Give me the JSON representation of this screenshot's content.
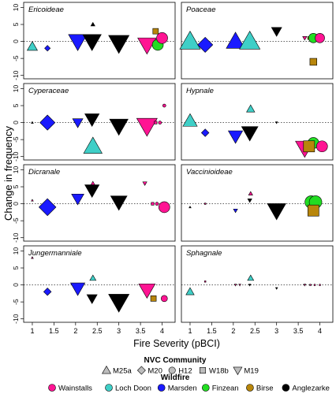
{
  "chart_data": {
    "type": "scatter",
    "ylabel": "Change in frequency",
    "xlabel": "Fire Severity (pBCI)",
    "xlim": [
      0.8,
      4.3
    ],
    "ylim": [
      -11,
      11.5
    ],
    "x_ticks": [
      "1",
      "1.5",
      "2",
      "2.5",
      "3",
      "3.5",
      "4"
    ],
    "x_tick_values": [
      1,
      1.5,
      2,
      2.5,
      3,
      3.5,
      4
    ],
    "y_ticks": [
      "10",
      "5",
      "0",
      "-5",
      "-10"
    ],
    "y_tick_values": [
      10,
      5,
      0,
      -5,
      -10
    ],
    "grid": false,
    "reference_line": 0,
    "panels": [
      {
        "title": "Ericoideae",
        "points": [
          {
            "x": 1.0,
            "y": -1.5,
            "shape": "triangle-up",
            "color": "#3fcfc7",
            "size": 5
          },
          {
            "x": 1.35,
            "y": -2,
            "shape": "diamond",
            "color": "#1a1aff",
            "size": 3
          },
          {
            "x": 2.05,
            "y": 0,
            "shape": "triangle-down",
            "color": "#1a1aff",
            "size": 9
          },
          {
            "x": 2.38,
            "y": 0,
            "shape": "triangle-down",
            "color": "#000000",
            "size": 9
          },
          {
            "x": 2.4,
            "y": 5,
            "shape": "triangle-up",
            "color": "#000000",
            "size": 2
          },
          {
            "x": 3.0,
            "y": -0.5,
            "shape": "triangle-down",
            "color": "#000000",
            "size": 10
          },
          {
            "x": 3.65,
            "y": -1,
            "shape": "triangle-down",
            "color": "#ff1493",
            "size": 9
          },
          {
            "x": 3.85,
            "y": 3,
            "shape": "square",
            "color": "#b8860b",
            "size": 4
          },
          {
            "x": 3.9,
            "y": -1,
            "shape": "circle",
            "color": "#22dd22",
            "size": 7
          },
          {
            "x": 4.0,
            "y": 1,
            "shape": "circle",
            "color": "#ff1493",
            "size": 7
          }
        ]
      },
      {
        "title": "Poaceae",
        "points": [
          {
            "x": 1.0,
            "y": 0,
            "shape": "triangle-up",
            "color": "#3fcfc7",
            "size": 10
          },
          {
            "x": 1.35,
            "y": -1,
            "shape": "diamond",
            "color": "#1a1aff",
            "size": 8
          },
          {
            "x": 2.05,
            "y": 0,
            "shape": "triangle-up",
            "color": "#1a1aff",
            "size": 9
          },
          {
            "x": 2.38,
            "y": 0,
            "shape": "triangle-up",
            "color": "#3fcfc7",
            "size": 10
          },
          {
            "x": 3.0,
            "y": 3,
            "shape": "triangle-down",
            "color": "#000000",
            "size": 5
          },
          {
            "x": 3.65,
            "y": 1,
            "shape": "triangle-down",
            "color": "#ff1493",
            "size": 2
          },
          {
            "x": 3.75,
            "y": 1,
            "shape": "square",
            "color": "#b8860b",
            "size": 2
          },
          {
            "x": 3.85,
            "y": 1,
            "shape": "circle",
            "color": "#22dd22",
            "size": 6
          },
          {
            "x": 4.0,
            "y": 1,
            "shape": "circle",
            "color": "#ff1493",
            "size": 6
          },
          {
            "x": 3.85,
            "y": -6,
            "shape": "square",
            "color": "#b8860b",
            "size": 5
          }
        ]
      },
      {
        "title": "Cyperaceae",
        "points": [
          {
            "x": 1.0,
            "y": 0,
            "shape": "triangle-up",
            "color": "#000000",
            "size": 1
          },
          {
            "x": 1.35,
            "y": 0,
            "shape": "diamond",
            "color": "#1a1aff",
            "size": 8
          },
          {
            "x": 2.05,
            "y": 0,
            "shape": "triangle-down",
            "color": "#1a1aff",
            "size": 5
          },
          {
            "x": 2.38,
            "y": 1,
            "shape": "triangle-down",
            "color": "#000000",
            "size": 7
          },
          {
            "x": 2.4,
            "y": -7,
            "shape": "triangle-up",
            "color": "#3fcfc7",
            "size": 9
          },
          {
            "x": 3.0,
            "y": -1,
            "shape": "triangle-down",
            "color": "#000000",
            "size": 9
          },
          {
            "x": 3.65,
            "y": -1,
            "shape": "triangle-down",
            "color": "#ff1493",
            "size": 10
          },
          {
            "x": 3.85,
            "y": 0,
            "shape": "square",
            "color": "#ff1493",
            "size": 2
          },
          {
            "x": 3.95,
            "y": 0,
            "shape": "circle",
            "color": "#ff1493",
            "size": 2
          },
          {
            "x": 4.05,
            "y": 5,
            "shape": "circle",
            "color": "#ff1493",
            "size": 2
          }
        ]
      },
      {
        "title": "Hypnale",
        "points": [
          {
            "x": 1.0,
            "y": 0.5,
            "shape": "triangle-up",
            "color": "#3fcfc7",
            "size": 7
          },
          {
            "x": 1.35,
            "y": -3,
            "shape": "diamond",
            "color": "#1a1aff",
            "size": 4
          },
          {
            "x": 2.05,
            "y": -4,
            "shape": "triangle-down",
            "color": "#1a1aff",
            "size": 7
          },
          {
            "x": 2.38,
            "y": -3,
            "shape": "triangle-down",
            "color": "#000000",
            "size": 8
          },
          {
            "x": 2.4,
            "y": 4,
            "shape": "triangle-up",
            "color": "#3fcfc7",
            "size": 4
          },
          {
            "x": 3.0,
            "y": 0,
            "shape": "triangle-down",
            "color": "#000000",
            "size": 1
          },
          {
            "x": 3.65,
            "y": -7.5,
            "shape": "triangle-down",
            "color": "#ff1493",
            "size": 9
          },
          {
            "x": 3.85,
            "y": -6,
            "shape": "circle",
            "color": "#22dd22",
            "size": 7
          },
          {
            "x": 4.05,
            "y": -7,
            "shape": "circle",
            "color": "#ff1493",
            "size": 7
          },
          {
            "x": 3.75,
            "y": -7,
            "shape": "square",
            "color": "#b8860b",
            "size": 8
          }
        ]
      },
      {
        "title": "Dicranale",
        "points": [
          {
            "x": 1.0,
            "y": 1,
            "shape": "triangle-up",
            "color": "#ff1493",
            "size": 1
          },
          {
            "x": 1.35,
            "y": -1,
            "shape": "diamond",
            "color": "#1a1aff",
            "size": 9
          },
          {
            "x": 2.05,
            "y": 1.5,
            "shape": "triangle-down",
            "color": "#1a1aff",
            "size": 6
          },
          {
            "x": 2.4,
            "y": 6,
            "shape": "triangle-up",
            "color": "#ff1493",
            "size": 2
          },
          {
            "x": 2.38,
            "y": 4,
            "shape": "triangle-down",
            "color": "#000000",
            "size": 7
          },
          {
            "x": 3.0,
            "y": 0.5,
            "shape": "triangle-down",
            "color": "#000000",
            "size": 8
          },
          {
            "x": 3.6,
            "y": 6,
            "shape": "triangle-down",
            "color": "#ff1493",
            "size": 2
          },
          {
            "x": 3.78,
            "y": 0,
            "shape": "square",
            "color": "#ff1493",
            "size": 2
          },
          {
            "x": 3.88,
            "y": 0,
            "shape": "circle",
            "color": "#ff1493",
            "size": 2
          },
          {
            "x": 4.05,
            "y": -1,
            "shape": "circle",
            "color": "#ff1493",
            "size": 7
          }
        ]
      },
      {
        "title": "Vaccinioideae",
        "points": [
          {
            "x": 1.0,
            "y": -1,
            "shape": "triangle-up",
            "color": "#000000",
            "size": 1
          },
          {
            "x": 1.35,
            "y": 0,
            "shape": "square",
            "color": "#ff1493",
            "size": 1
          },
          {
            "x": 2.05,
            "y": -2,
            "shape": "triangle-down",
            "color": "#1a1aff",
            "size": 2
          },
          {
            "x": 2.4,
            "y": 3,
            "shape": "triangle-up",
            "color": "#ff1493",
            "size": 2
          },
          {
            "x": 2.38,
            "y": 1,
            "shape": "triangle-down",
            "color": "#000000",
            "size": 2
          },
          {
            "x": 3.0,
            "y": -2,
            "shape": "triangle-down",
            "color": "#000000",
            "size": 9
          },
          {
            "x": 3.8,
            "y": 0.5,
            "shape": "circle",
            "color": "#22dd22",
            "size": 8
          },
          {
            "x": 3.9,
            "y": 0.5,
            "shape": "circle",
            "color": "#22dd22",
            "size": 8
          },
          {
            "x": 3.85,
            "y": -2,
            "shape": "square",
            "color": "#b8860b",
            "size": 8
          }
        ]
      },
      {
        "title": "Jungermanniale",
        "points": [
          {
            "x": 1.0,
            "y": 8,
            "shape": "triangle-up",
            "color": "#ff1493",
            "size": 1
          },
          {
            "x": 1.35,
            "y": -2,
            "shape": "diamond",
            "color": "#1a1aff",
            "size": 4
          },
          {
            "x": 2.05,
            "y": -1,
            "shape": "triangle-down",
            "color": "#1a1aff",
            "size": 7
          },
          {
            "x": 2.4,
            "y": 2,
            "shape": "triangle-up",
            "color": "#3fcfc7",
            "size": 3
          },
          {
            "x": 2.38,
            "y": -4,
            "shape": "triangle-down",
            "color": "#000000",
            "size": 5
          },
          {
            "x": 3.0,
            "y": -5,
            "shape": "triangle-down",
            "color": "#000000",
            "size": 10
          },
          {
            "x": 3.65,
            "y": -1.5,
            "shape": "triangle-down",
            "color": "#ff1493",
            "size": 8
          },
          {
            "x": 3.8,
            "y": -4,
            "shape": "square",
            "color": "#b8860b",
            "size": 4
          },
          {
            "x": 4.05,
            "y": -4,
            "shape": "circle",
            "color": "#ff1493",
            "size": 4
          }
        ]
      },
      {
        "title": "Sphagnale",
        "points": [
          {
            "x": 1.0,
            "y": -2,
            "shape": "triangle-up",
            "color": "#3fcfc7",
            "size": 4
          },
          {
            "x": 1.35,
            "y": 1,
            "shape": "square",
            "color": "#ff1493",
            "size": 1
          },
          {
            "x": 2.05,
            "y": 0,
            "shape": "triangle-down",
            "color": "#ff1493",
            "size": 1
          },
          {
            "x": 2.15,
            "y": 0,
            "shape": "triangle-down",
            "color": "#ff1493",
            "size": 1
          },
          {
            "x": 2.4,
            "y": 2,
            "shape": "triangle-up",
            "color": "#3fcfc7",
            "size": 3
          },
          {
            "x": 2.38,
            "y": 0,
            "shape": "triangle-down",
            "color": "#000000",
            "size": 1
          },
          {
            "x": 3.0,
            "y": -1,
            "shape": "triangle-down",
            "color": "#000000",
            "size": 1
          },
          {
            "x": 3.65,
            "y": 0,
            "shape": "triangle-down",
            "color": "#ff1493",
            "size": 1
          },
          {
            "x": 3.78,
            "y": 0,
            "shape": "square",
            "color": "#ff1493",
            "size": 1
          },
          {
            "x": 3.88,
            "y": 0,
            "shape": "circle",
            "color": "#ff1493",
            "size": 1
          },
          {
            "x": 4.0,
            "y": 0,
            "shape": "circle",
            "color": "#ff1493",
            "size": 1
          }
        ]
      }
    ],
    "legend": {
      "community_title": "NVC Community",
      "communities": [
        {
          "label": "M25a",
          "shape": "triangle-up"
        },
        {
          "label": "M20",
          "shape": "diamond"
        },
        {
          "label": "H12",
          "shape": "circle"
        },
        {
          "label": "W18b",
          "shape": "square"
        },
        {
          "label": "M19",
          "shape": "triangle-down"
        }
      ],
      "wildfire_title": "Wildfire",
      "wildfires": [
        {
          "label": "Wainstalls",
          "color": "#ff1493"
        },
        {
          "label": "Loch Doon",
          "color": "#3fcfc7"
        },
        {
          "label": "Marsden",
          "color": "#1a1aff"
        },
        {
          "label": "Finzean",
          "color": "#22dd22"
        },
        {
          "label": "Birse",
          "color": "#b8860b"
        },
        {
          "label": "Anglezarke",
          "color": "#000000"
        }
      ]
    }
  }
}
